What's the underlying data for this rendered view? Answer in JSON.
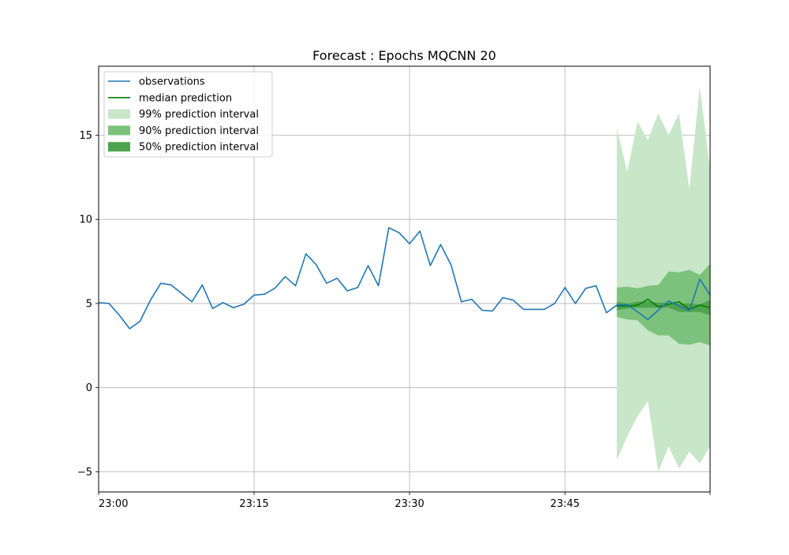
{
  "chart_data": {
    "type": "line",
    "title": "Forecast : Epochs MQCNN 20",
    "xlabel": "",
    "ylabel": "",
    "x_start": "23:00",
    "x_step_minutes": 1,
    "xlim": [
      "23:00",
      "23:59"
    ],
    "ylim": [
      -6.2,
      19.1
    ],
    "grid": true,
    "legend_position": "top-left",
    "x_ticks": [
      "23:00",
      "23:15",
      "23:30",
      "23:45"
    ],
    "y_ticks": [
      15,
      10,
      5,
      0,
      -5
    ],
    "y_tick_labels": [
      "15",
      "10",
      "5",
      "0",
      "−5"
    ],
    "observations": {
      "name": "observations",
      "color": "#1f77b4",
      "values": [
        5.05,
        5.0,
        4.3,
        3.5,
        3.95,
        5.2,
        6.2,
        6.1,
        5.6,
        5.1,
        6.1,
        4.7,
        5.05,
        4.75,
        4.95,
        5.5,
        5.55,
        5.9,
        6.6,
        6.05,
        7.95,
        7.3,
        6.2,
        6.5,
        5.75,
        5.95,
        7.25,
        6.05,
        9.5,
        9.2,
        8.55,
        9.3,
        7.25,
        8.5,
        7.3,
        5.1,
        5.25,
        4.6,
        4.55,
        5.35,
        5.2,
        4.65,
        4.65,
        4.65,
        5.0,
        5.95,
        5.0,
        5.9,
        6.05,
        4.45,
        4.9,
        4.95,
        4.5,
        4.05,
        4.6,
        5.15,
        4.85,
        4.55,
        6.45,
        5.5
      ]
    },
    "forecast": {
      "start_index": 50,
      "median": {
        "name": "median prediction",
        "color": "#008000",
        "values": [
          4.85,
          4.85,
          4.9,
          5.25,
          4.8,
          4.95,
          5.1,
          4.65,
          4.9,
          4.75
        ]
      },
      "intervals": [
        {
          "name": "99% prediction interval",
          "color": "#c8e6c8",
          "lower": [
            -4.3,
            -2.9,
            -1.7,
            -0.8,
            -5.0,
            -3.5,
            -4.8,
            -3.8,
            -4.5,
            -3.5
          ],
          "upper": [
            15.4,
            12.8,
            15.8,
            14.7,
            16.3,
            15.0,
            16.3,
            11.8,
            17.9,
            13.0
          ]
        },
        {
          "name": "90% prediction interval",
          "color": "#7cc27c",
          "lower": [
            4.2,
            4.05,
            4.0,
            3.4,
            3.1,
            3.1,
            2.6,
            2.55,
            2.7,
            2.5
          ],
          "upper": [
            5.95,
            6.0,
            5.9,
            6.05,
            6.1,
            6.9,
            6.85,
            7.0,
            6.7,
            7.35
          ]
        },
        {
          "name": "50% prediction interval",
          "color": "#4ea34e",
          "lower": [
            4.6,
            4.7,
            4.75,
            4.75,
            4.75,
            4.75,
            4.5,
            4.5,
            4.5,
            4.3
          ],
          "upper": [
            5.1,
            5.0,
            5.1,
            5.1,
            5.05,
            5.05,
            5.0,
            5.0,
            4.95,
            5.2
          ]
        }
      ]
    },
    "legend": [
      {
        "label": "observations",
        "kind": "line",
        "color": "#1f77b4"
      },
      {
        "label": "median prediction",
        "kind": "line",
        "color": "#008000"
      },
      {
        "label": "99% prediction interval",
        "kind": "patch",
        "color": "#c8e6c8"
      },
      {
        "label": "90% prediction interval",
        "kind": "patch",
        "color": "#7cc27c"
      },
      {
        "label": "50% prediction interval",
        "kind": "patch",
        "color": "#4ea34e"
      }
    ]
  }
}
